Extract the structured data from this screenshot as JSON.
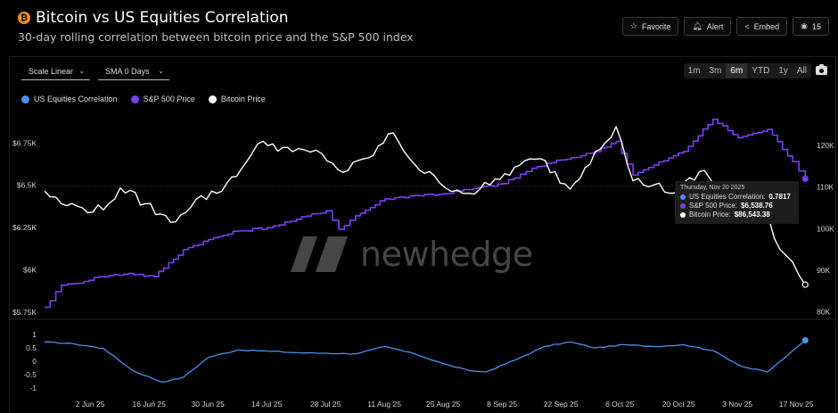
{
  "header": {
    "title": "Bitcoin vs US Equities Correlation",
    "subtitle": "30-day rolling correlation between bitcoin price and the S&P 500 index",
    "btc_symbol": "₿"
  },
  "actions": {
    "favorite": "Favorite",
    "alert": "Alert",
    "embed": "Embed",
    "views": "15"
  },
  "controls": {
    "scale": "Scale Linear",
    "sma": "SMA 0 Days",
    "ranges": [
      "1m",
      "3m",
      "6m",
      "YTD",
      "1y",
      "All"
    ],
    "active_range": "6m"
  },
  "watermark": "newhedge",
  "tooltip": {
    "date": "Thursday, Nov 20 2025",
    "rows": [
      {
        "label": "US Equities Correlation:",
        "value": "0.7817"
      },
      {
        "label": "S&P 500 Price:",
        "value": "$6,538.76"
      },
      {
        "label": "Bitcoin Price:",
        "value": "$86,543.38"
      }
    ]
  },
  "chart_data": {
    "type": "line",
    "title": "Bitcoin vs US Equities Correlation",
    "colors": {
      "correlation": "#4a90f0",
      "sp500": "#7b3ff2",
      "bitcoin": "#ffffff"
    },
    "x_ticks": [
      "2 Jun 25",
      "16 Jun 25",
      "30 Jun 25",
      "14 Jul 25",
      "28 Jul 25",
      "11 Aug 25",
      "25 Aug 25",
      "8 Sep 25",
      "22 Sep 25",
      "6 Oct 25",
      "20 Oct 25",
      "3 Nov 25",
      "17 Nov 25"
    ],
    "x_range": [
      "2025-05-23",
      "2025-11-21"
    ],
    "left_axis": {
      "ticks": [
        "$5.75K",
        "$6K",
        "$6.25K",
        "$6.5K",
        "$6.75K"
      ],
      "values": [
        5750,
        6000,
        6250,
        6500,
        6750
      ],
      "ylim": [
        5740,
        6920
      ]
    },
    "right_axis": {
      "ticks": [
        "80K",
        "90K",
        "100K",
        "110K",
        "120K"
      ],
      "values": [
        80000,
        90000,
        100000,
        110000,
        120000
      ],
      "ylim": [
        79500,
        127500
      ]
    },
    "bottom_axis": {
      "ticks": [
        "1",
        "0.5",
        "0",
        "-0.5",
        "-1"
      ],
      "values": [
        1,
        0.5,
        0,
        -0.5,
        -1
      ],
      "ylim": [
        -1.2,
        1.3
      ]
    },
    "series": [
      {
        "name": "US Equities Correlation",
        "axis": "bottom",
        "dates": [
          "2025-05-23",
          "2025-05-30",
          "2025-06-06",
          "2025-06-13",
          "2025-06-20",
          "2025-06-25",
          "2025-07-01",
          "2025-07-08",
          "2025-07-15",
          "2025-07-22",
          "2025-07-29",
          "2025-08-05",
          "2025-08-12",
          "2025-08-19",
          "2025-08-26",
          "2025-09-01",
          "2025-09-05",
          "2025-09-12",
          "2025-09-19",
          "2025-09-25",
          "2025-10-01",
          "2025-10-08",
          "2025-10-15",
          "2025-10-22",
          "2025-10-29",
          "2025-11-05",
          "2025-11-11",
          "2025-11-16",
          "2025-11-20"
        ],
        "values": [
          0.72,
          0.65,
          0.48,
          -0.35,
          -0.78,
          -0.6,
          0.15,
          0.42,
          0.38,
          0.32,
          0.3,
          0.28,
          0.55,
          0.28,
          -0.1,
          -0.35,
          -0.4,
          0.05,
          0.55,
          0.72,
          0.5,
          0.62,
          0.55,
          0.62,
          0.4,
          -0.2,
          -0.4,
          0.25,
          0.7817
        ]
      },
      {
        "name": "S&P 500 Price",
        "axis": "left",
        "dates": [
          "2025-05-23",
          "2025-05-27",
          "2025-05-30",
          "2025-06-05",
          "2025-06-12",
          "2025-06-18",
          "2025-06-25",
          "2025-07-01",
          "2025-07-08",
          "2025-07-15",
          "2025-07-22",
          "2025-07-29",
          "2025-08-01",
          "2025-08-05",
          "2025-08-12",
          "2025-08-19",
          "2025-08-26",
          "2025-09-02",
          "2025-09-09",
          "2025-09-16",
          "2025-09-23",
          "2025-09-30",
          "2025-10-06",
          "2025-10-10",
          "2025-10-15",
          "2025-10-22",
          "2025-10-29",
          "2025-11-04",
          "2025-11-11",
          "2025-11-17",
          "2025-11-20"
        ],
        "values": [
          5780,
          5910,
          5920,
          5960,
          5980,
          5960,
          6120,
          6180,
          6230,
          6250,
          6300,
          6350,
          6240,
          6320,
          6420,
          6440,
          6450,
          6480,
          6510,
          6600,
          6650,
          6690,
          6760,
          6560,
          6620,
          6700,
          6890,
          6780,
          6830,
          6640,
          6538.76
        ]
      },
      {
        "name": "Bitcoin Price",
        "axis": "right",
        "dates": [
          "2025-05-23",
          "2025-05-27",
          "2025-06-01",
          "2025-06-06",
          "2025-06-10",
          "2025-06-16",
          "2025-06-22",
          "2025-06-28",
          "2025-07-03",
          "2025-07-10",
          "2025-07-14",
          "2025-07-21",
          "2025-07-28",
          "2025-08-02",
          "2025-08-08",
          "2025-08-14",
          "2025-08-19",
          "2025-08-25",
          "2025-09-01",
          "2025-09-06",
          "2025-09-13",
          "2025-09-18",
          "2025-09-25",
          "2025-10-01",
          "2025-10-06",
          "2025-10-10",
          "2025-10-15",
          "2025-10-20",
          "2025-10-27",
          "2025-11-04",
          "2025-11-10",
          "2025-11-14",
          "2025-11-17",
          "2025-11-20"
        ],
        "values": [
          109000,
          106000,
          105000,
          104500,
          109800,
          106000,
          101500,
          107000,
          108500,
          116000,
          121000,
          118500,
          118000,
          113500,
          117000,
          123000,
          115500,
          111000,
          108500,
          110500,
          115200,
          116800,
          109500,
          118500,
          124500,
          111500,
          110500,
          108600,
          114000,
          102000,
          106000,
          95000,
          92000,
          86543.38
        ]
      }
    ]
  }
}
